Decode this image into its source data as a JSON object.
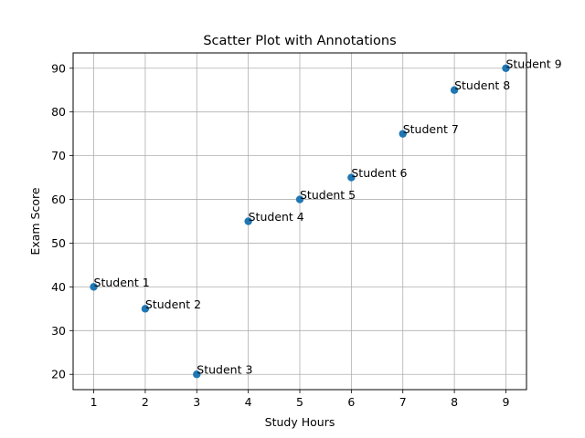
{
  "chart_data": {
    "type": "scatter",
    "title": "Scatter Plot with Annotations",
    "xlabel": "Study Hours",
    "ylabel": "Exam Score",
    "xlim": [
      0.6,
      9.4
    ],
    "ylim": [
      16.5,
      93.5
    ],
    "xticks": [
      1,
      2,
      3,
      4,
      5,
      6,
      7,
      8,
      9
    ],
    "yticks": [
      20,
      30,
      40,
      50,
      60,
      70,
      80,
      90
    ],
    "grid": true,
    "marker_color": "#1f77b4",
    "points": [
      {
        "x": 1,
        "y": 40,
        "label": "Student 1"
      },
      {
        "x": 2,
        "y": 35,
        "label": "Student 2"
      },
      {
        "x": 3,
        "y": 20,
        "label": "Student 3"
      },
      {
        "x": 4,
        "y": 55,
        "label": "Student 4"
      },
      {
        "x": 5,
        "y": 60,
        "label": "Student 5"
      },
      {
        "x": 6,
        "y": 65,
        "label": "Student 6"
      },
      {
        "x": 7,
        "y": 75,
        "label": "Student 7"
      },
      {
        "x": 8,
        "y": 85,
        "label": "Student 8"
      },
      {
        "x": 9,
        "y": 90,
        "label": "Student 9"
      }
    ]
  }
}
